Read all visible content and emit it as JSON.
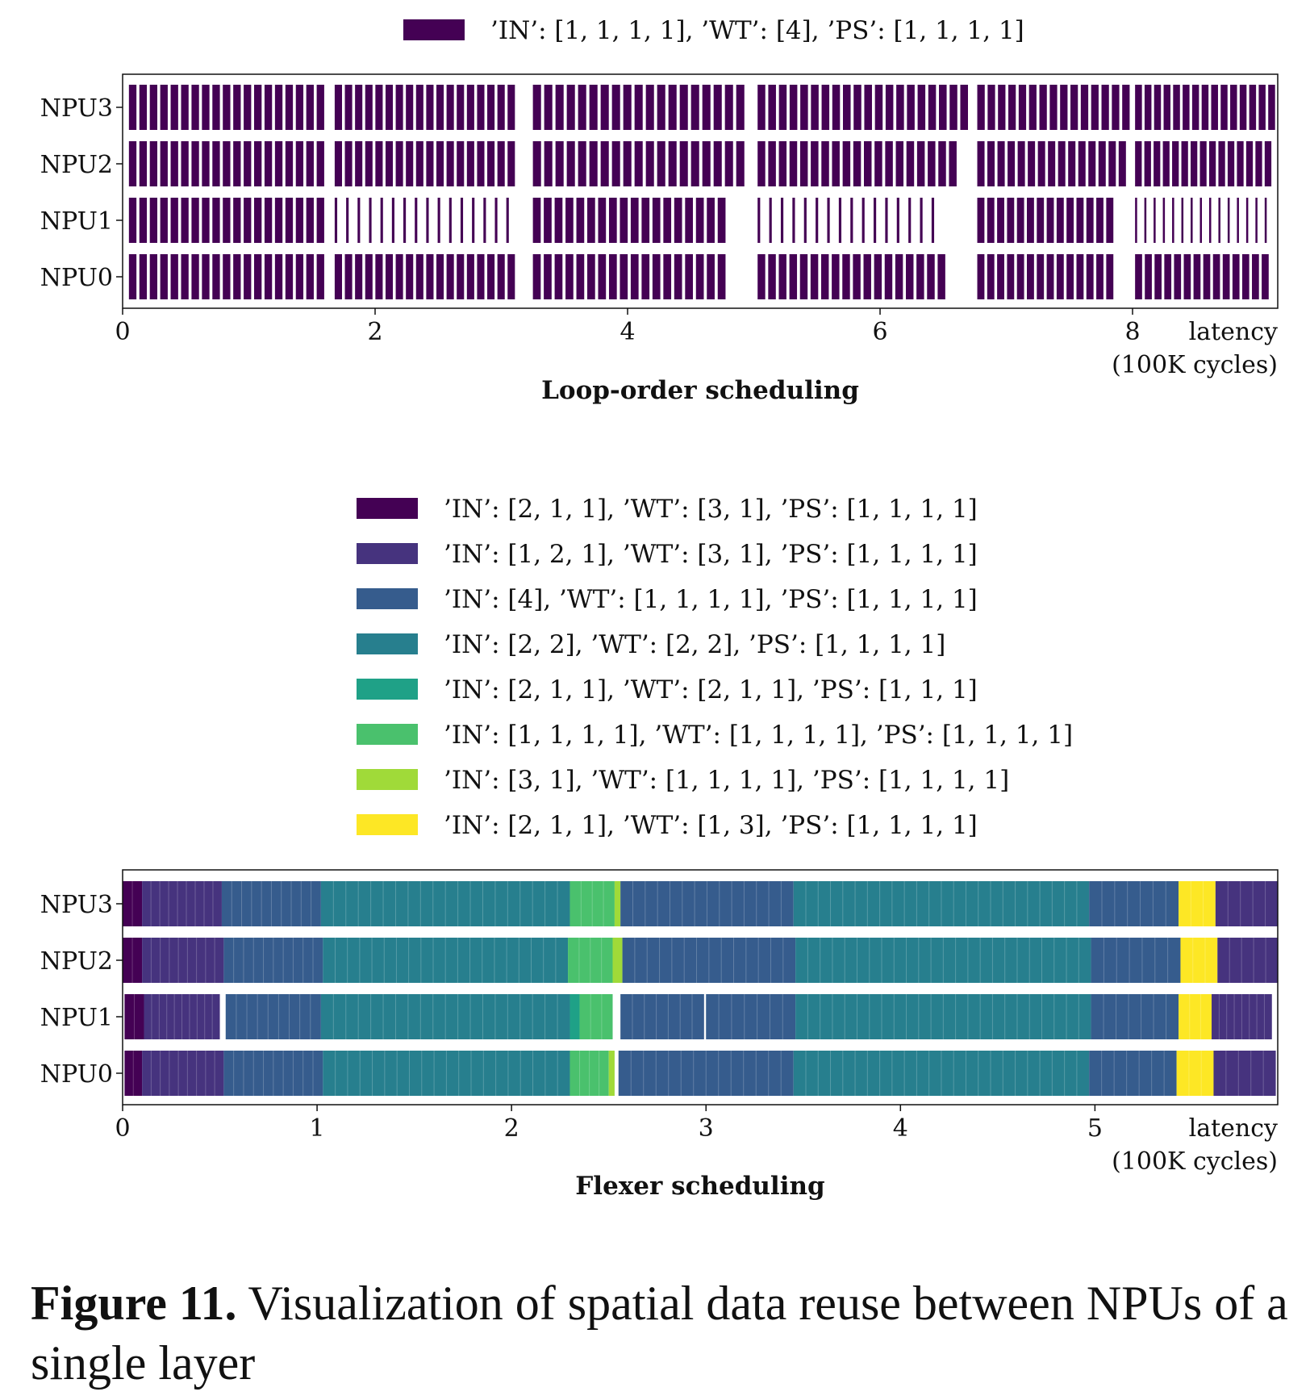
{
  "chart_data": [
    {
      "type": "gantt",
      "title": "Loop-order scheduling",
      "xlabel_line1": "latency",
      "xlabel_line2": "(100K cycles)",
      "xlim": [
        0,
        9.15
      ],
      "xticks": [
        0,
        2,
        4,
        6,
        8
      ],
      "rows": [
        "NPU3",
        "NPU2",
        "NPU1",
        "NPU0"
      ],
      "legend": [
        {
          "label": "’IN’: [1, 1, 1, 1], ’WT’: [4], ’PS’: [1, 1, 1, 1]",
          "color": "#440154"
        }
      ],
      "tasks": {
        "NPU3": [
          {
            "s": 0.05,
            "e": 1.62,
            "c": 0,
            "n": 19,
            "w": "thick"
          },
          {
            "s": 1.68,
            "e": 3.13,
            "c": 0,
            "n": 18,
            "w": "thick"
          },
          {
            "s": 3.25,
            "e": 4.95,
            "c": 0,
            "n": 19,
            "w": "thick"
          },
          {
            "s": 5.03,
            "e": 6.72,
            "c": 0,
            "n": 20,
            "w": "thick"
          },
          {
            "s": 6.77,
            "e": 8.0,
            "c": 0,
            "n": 15,
            "w": "thick"
          },
          {
            "s": 8.02,
            "e": 9.15,
            "c": 0,
            "n": 15,
            "w": "thick"
          }
        ],
        "NPU2": [
          {
            "s": 0.05,
            "e": 1.62,
            "c": 0,
            "n": 19,
            "w": "thick"
          },
          {
            "s": 1.68,
            "e": 3.13,
            "c": 0,
            "n": 18,
            "w": "thick"
          },
          {
            "s": 3.25,
            "e": 4.95,
            "c": 0,
            "n": 19,
            "w": "thick"
          },
          {
            "s": 5.03,
            "e": 6.63,
            "c": 0,
            "n": 19,
            "w": "thick"
          },
          {
            "s": 6.77,
            "e": 7.97,
            "c": 0,
            "n": 15,
            "w": "thick"
          },
          {
            "s": 8.02,
            "e": 9.12,
            "c": 0,
            "n": 15,
            "w": "thick"
          }
        ],
        "NPU1": [
          {
            "s": 0.05,
            "e": 1.62,
            "c": 0,
            "n": 19,
            "w": "thick"
          },
          {
            "s": 1.68,
            "e": 3.13,
            "c": 0,
            "n": 16,
            "w": "thin"
          },
          {
            "s": 3.25,
            "e": 4.8,
            "c": 0,
            "n": 18,
            "w": "thick"
          },
          {
            "s": 5.03,
            "e": 6.5,
            "c": 0,
            "n": 16,
            "w": "thin"
          },
          {
            "s": 6.77,
            "e": 7.87,
            "c": 0,
            "n": 14,
            "w": "thick"
          },
          {
            "s": 8.02,
            "e": 9.12,
            "c": 0,
            "n": 15,
            "w": "thin"
          }
        ],
        "NPU0": [
          {
            "s": 0.05,
            "e": 1.62,
            "c": 0,
            "n": 19,
            "w": "thick"
          },
          {
            "s": 1.68,
            "e": 3.13,
            "c": 0,
            "n": 18,
            "w": "thick"
          },
          {
            "s": 3.25,
            "e": 4.8,
            "c": 0,
            "n": 18,
            "w": "thick"
          },
          {
            "s": 5.03,
            "e": 6.54,
            "c": 0,
            "n": 18,
            "w": "thick"
          },
          {
            "s": 6.77,
            "e": 7.87,
            "c": 0,
            "n": 14,
            "w": "thick"
          },
          {
            "s": 8.02,
            "e": 9.1,
            "c": 0,
            "n": 14,
            "w": "thick"
          }
        ]
      }
    },
    {
      "type": "gantt",
      "title": "Flexer scheduling",
      "xlabel_line1": "latency",
      "xlabel_line2": "(100K cycles)",
      "xlim": [
        0,
        5.94
      ],
      "xticks": [
        0,
        1,
        2,
        3,
        4,
        5
      ],
      "rows": [
        "NPU3",
        "NPU2",
        "NPU1",
        "NPU0"
      ],
      "legend": [
        {
          "label": "’IN’: [2, 1, 1], ’WT’: [3, 1], ’PS’: [1, 1, 1, 1]",
          "color": "#440154"
        },
        {
          "label": "’IN’: [1, 2, 1], ’WT’: [3, 1], ’PS’: [1, 1, 1, 1]",
          "color": "#46337e"
        },
        {
          "label": "’IN’: [4], ’WT’: [1, 1, 1, 1], ’PS’: [1, 1, 1, 1]",
          "color": "#365c8d"
        },
        {
          "label": "’IN’: [2, 2], ’WT’: [2, 2], ’PS’: [1, 1, 1, 1]",
          "color": "#277f8e"
        },
        {
          "label": "’IN’: [2, 1, 1], ’WT’: [2, 1, 1], ’PS’: [1, 1, 1]",
          "color": "#1fa187"
        },
        {
          "label": "’IN’: [1, 1, 1, 1], ’WT’: [1, 1, 1, 1], ’PS’: [1, 1, 1, 1]",
          "color": "#4ac16d"
        },
        {
          "label": "’IN’: [3, 1], ’WT’: [1, 1, 1, 1], ’PS’: [1, 1, 1, 1]",
          "color": "#a0da39"
        },
        {
          "label": "’IN’: [2, 1, 1], ’WT’: [1, 3], ’PS’: [1, 1, 1, 1]",
          "color": "#fde725"
        }
      ],
      "tasks": {
        "NPU3": [
          {
            "s": 0.0,
            "e": 0.1,
            "c": 0,
            "n": 2
          },
          {
            "s": 0.1,
            "e": 0.51,
            "c": 1,
            "n": 9
          },
          {
            "s": 0.51,
            "e": 1.02,
            "c": 2,
            "n": 10
          },
          {
            "s": 1.02,
            "e": 2.3,
            "c": 3,
            "n": 20
          },
          {
            "s": 2.3,
            "e": 2.53,
            "c": 5,
            "n": 4
          },
          {
            "s": 2.53,
            "e": 2.56,
            "c": 6,
            "n": 1
          },
          {
            "s": 2.56,
            "e": 3.45,
            "c": 2,
            "n": 14
          },
          {
            "s": 3.45,
            "e": 4.97,
            "c": 3,
            "n": 24
          },
          {
            "s": 4.97,
            "e": 5.43,
            "c": 2,
            "n": 7
          },
          {
            "s": 5.43,
            "e": 5.62,
            "c": 7,
            "n": 3
          },
          {
            "s": 5.62,
            "e": 5.94,
            "c": 1,
            "n": 5
          }
        ],
        "NPU2": [
          {
            "s": 0.0,
            "e": 0.1,
            "c": 0,
            "n": 2
          },
          {
            "s": 0.1,
            "e": 0.52,
            "c": 1,
            "n": 9
          },
          {
            "s": 0.52,
            "e": 1.03,
            "c": 2,
            "n": 10
          },
          {
            "s": 1.03,
            "e": 2.29,
            "c": 3,
            "n": 20
          },
          {
            "s": 2.29,
            "e": 2.52,
            "c": 5,
            "n": 4
          },
          {
            "s": 2.52,
            "e": 2.57,
            "c": 6,
            "n": 1
          },
          {
            "s": 2.57,
            "e": 3.46,
            "c": 2,
            "n": 14
          },
          {
            "s": 3.46,
            "e": 4.98,
            "c": 3,
            "n": 24
          },
          {
            "s": 4.98,
            "e": 5.44,
            "c": 2,
            "n": 7
          },
          {
            "s": 5.44,
            "e": 5.63,
            "c": 7,
            "n": 3
          },
          {
            "s": 5.63,
            "e": 5.94,
            "c": 1,
            "n": 5
          }
        ],
        "NPU1": [
          {
            "s": 0.01,
            "e": 0.11,
            "c": 0,
            "n": 2
          },
          {
            "s": 0.11,
            "e": 0.5,
            "c": 1,
            "n": 10
          },
          {
            "s": 0.53,
            "e": 1.02,
            "c": 2,
            "n": 9
          },
          {
            "s": 1.02,
            "e": 2.3,
            "c": 3,
            "n": 20
          },
          {
            "s": 2.3,
            "e": 2.35,
            "c": 4,
            "n": 1
          },
          {
            "s": 2.35,
            "e": 2.52,
            "c": 5,
            "n": 3
          },
          {
            "s": 2.56,
            "e": 2.99,
            "c": 2,
            "n": 7
          },
          {
            "s": 3.0,
            "e": 3.46,
            "c": 2,
            "n": 7
          },
          {
            "s": 3.46,
            "e": 4.98,
            "c": 3,
            "n": 24
          },
          {
            "s": 4.98,
            "e": 5.43,
            "c": 2,
            "n": 7
          },
          {
            "s": 5.43,
            "e": 5.6,
            "c": 7,
            "n": 3
          },
          {
            "s": 5.6,
            "e": 5.91,
            "c": 1,
            "n": 8
          }
        ],
        "NPU0": [
          {
            "s": 0.01,
            "e": 0.1,
            "c": 0,
            "n": 2
          },
          {
            "s": 0.1,
            "e": 0.52,
            "c": 1,
            "n": 9
          },
          {
            "s": 0.52,
            "e": 1.03,
            "c": 2,
            "n": 10
          },
          {
            "s": 1.03,
            "e": 2.3,
            "c": 3,
            "n": 20
          },
          {
            "s": 2.3,
            "e": 2.5,
            "c": 5,
            "n": 4
          },
          {
            "s": 2.5,
            "e": 2.53,
            "c": 6,
            "n": 1
          },
          {
            "s": 2.55,
            "e": 3.45,
            "c": 2,
            "n": 14
          },
          {
            "s": 3.45,
            "e": 4.97,
            "c": 3,
            "n": 24
          },
          {
            "s": 4.97,
            "e": 5.42,
            "c": 2,
            "n": 7
          },
          {
            "s": 5.42,
            "e": 5.61,
            "c": 7,
            "n": 3
          },
          {
            "s": 5.61,
            "e": 5.93,
            "c": 1,
            "n": 5
          }
        ]
      }
    }
  ],
  "caption": {
    "label": "Figure 11.",
    "text": " Visualization of spatial data reuse between NPUs of a single layer"
  }
}
